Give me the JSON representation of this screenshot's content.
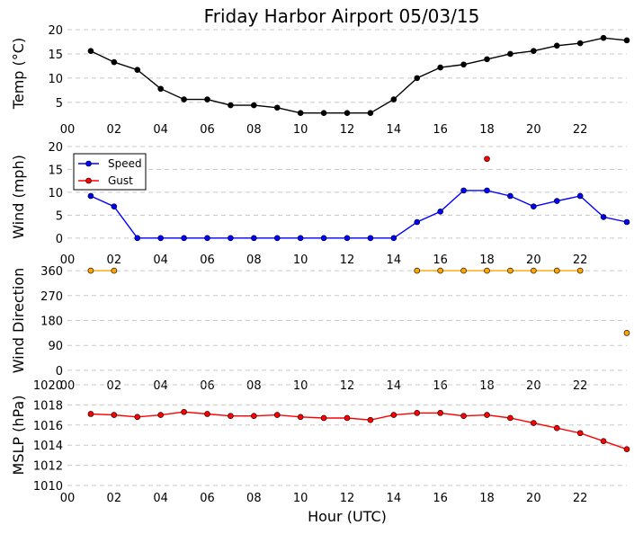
{
  "title": "Friday Harbor Airport 05/03/15",
  "xlabel": "Hour (UTC)",
  "x_ticks": [
    "00",
    "02",
    "04",
    "06",
    "08",
    "10",
    "12",
    "14",
    "16",
    "18",
    "20",
    "22"
  ],
  "x_tick_values": [
    0,
    2,
    4,
    6,
    8,
    10,
    12,
    14,
    16,
    18,
    20,
    22
  ],
  "xlim": [
    0,
    24
  ],
  "chart_data": [
    {
      "type": "line",
      "ylabel": "Temp (°C)",
      "ylim": [
        2,
        20
      ],
      "y_ticks": [
        5,
        10,
        15,
        20
      ],
      "grid": true,
      "series": [
        {
          "color": "#000000",
          "x": [
            1,
            2,
            3,
            4,
            5,
            6,
            7,
            8,
            9,
            10,
            11,
            12,
            13,
            14,
            15,
            16,
            17,
            18,
            19,
            20,
            21,
            22,
            23,
            24
          ],
          "y": [
            15.6,
            13.3,
            11.7,
            7.8,
            5.6,
            5.6,
            4.4,
            4.4,
            3.9,
            2.8,
            2.8,
            2.8,
            2.8,
            5.6,
            10.0,
            12.2,
            12.8,
            13.9,
            15.0,
            15.6,
            16.7,
            17.2,
            18.3,
            17.8
          ]
        }
      ]
    },
    {
      "type": "line",
      "ylabel": "Wind (mph)",
      "ylim": [
        -2,
        20
      ],
      "y_ticks": [
        0,
        5,
        10,
        15,
        20
      ],
      "grid": true,
      "legend": "top-left",
      "series": [
        {
          "name": "Speed",
          "color": "#0000ff",
          "x": [
            1,
            2,
            3,
            4,
            5,
            6,
            7,
            8,
            9,
            10,
            11,
            12,
            13,
            14,
            15,
            16,
            17,
            18,
            19,
            20,
            21,
            22,
            23,
            24
          ],
          "y": [
            9.2,
            6.9,
            0,
            0,
            0,
            0,
            0,
            0,
            0,
            0,
            0,
            0,
            0,
            0,
            3.5,
            5.8,
            10.4,
            10.4,
            9.2,
            6.9,
            8.1,
            9.2,
            4.6,
            3.5
          ]
        },
        {
          "name": "Gust",
          "color": "#ff0000",
          "x": [
            18
          ],
          "y": [
            17.3
          ]
        }
      ]
    },
    {
      "type": "line",
      "ylabel": "Wind Direction",
      "ylim": [
        -10,
        370
      ],
      "y_ticks": [
        0,
        90,
        180,
        270,
        360
      ],
      "grid": true,
      "series": [
        {
          "color": "#ffa500",
          "x": [
            1,
            2,
            15,
            16,
            17,
            18,
            19,
            20,
            21,
            22,
            24
          ],
          "y": [
            360,
            360,
            360,
            360,
            360,
            360,
            360,
            360,
            360,
            360,
            135
          ],
          "segments": [
            [
              0,
              1
            ],
            [
              2,
              9
            ]
          ]
        }
      ]
    },
    {
      "type": "line",
      "ylabel": "MSLP (hPa)",
      "ylim": [
        1010,
        1020
      ],
      "y_ticks": [
        1010,
        1012,
        1014,
        1016,
        1018,
        1020
      ],
      "grid": true,
      "series": [
        {
          "color": "#ff0000",
          "x": [
            1,
            2,
            3,
            4,
            5,
            6,
            7,
            8,
            9,
            10,
            11,
            12,
            13,
            14,
            15,
            16,
            17,
            18,
            19,
            20,
            21,
            22,
            23,
            24
          ],
          "y": [
            1017.1,
            1017.0,
            1016.8,
            1017.0,
            1017.3,
            1017.1,
            1016.9,
            1016.9,
            1017.0,
            1016.8,
            1016.7,
            1016.7,
            1016.5,
            1017.0,
            1017.2,
            1017.2,
            1016.9,
            1017.0,
            1016.7,
            1016.2,
            1015.7,
            1015.2,
            1014.4,
            1013.6
          ]
        }
      ]
    }
  ]
}
